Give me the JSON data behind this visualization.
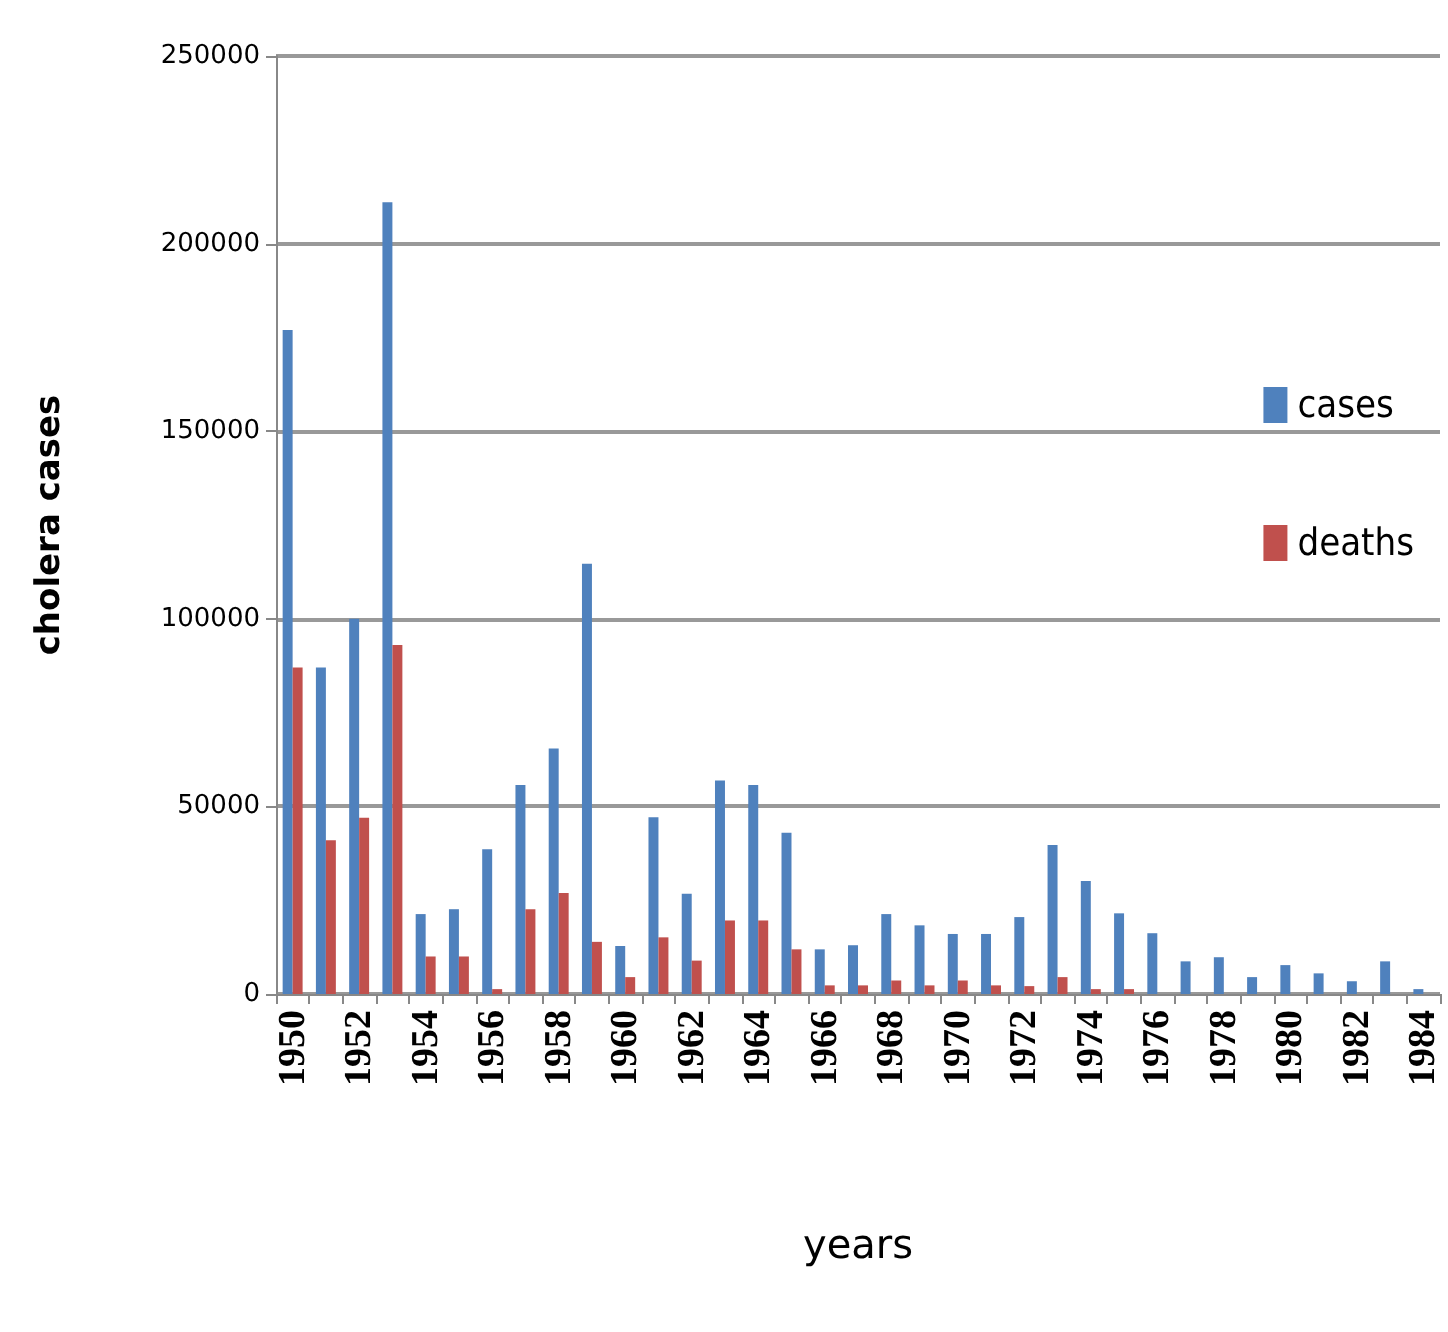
{
  "chart_data": {
    "type": "bar",
    "xlabel": "years",
    "ylabel": "cholera cases",
    "categories": [
      "1950",
      null,
      "1952",
      null,
      "1954",
      null,
      "1956",
      null,
      "1958",
      null,
      "1960",
      null,
      "1962",
      null,
      "1964",
      null,
      "1966",
      null,
      "1968",
      null,
      "1970",
      null,
      "1972",
      null,
      "1974",
      null,
      "1976",
      null,
      "1978",
      null,
      "1980",
      null,
      "1982",
      null,
      "1984"
    ],
    "series": [
      {
        "name": "cases",
        "color": "#4f81bd",
        "values": [
          177000,
          87000,
          100000,
          211000,
          21300,
          22600,
          38600,
          55700,
          65400,
          114700,
          12800,
          47100,
          26700,
          56900,
          55700,
          43000,
          11900,
          13000,
          21300,
          18300,
          16000,
          16000,
          20500,
          39700,
          30100,
          21500,
          16200,
          8700,
          9800,
          4500,
          7700,
          5500,
          3400,
          8700,
          1300
        ]
      },
      {
        "name": "deaths",
        "color": "#c0504d",
        "values": [
          87000,
          41000,
          47000,
          93000,
          10000,
          10000,
          1300,
          22600,
          26900,
          13900,
          4500,
          15100,
          8900,
          19600,
          19600,
          11900,
          2300,
          2300,
          3600,
          2300,
          3600,
          2300,
          2100,
          4500,
          1300,
          1300,
          0,
          0,
          0,
          0,
          0,
          0,
          0,
          0,
          0
        ]
      }
    ],
    "ylim": [
      0,
      250000
    ],
    "yticks": [
      0,
      50000,
      100000,
      150000,
      200000,
      250000
    ],
    "grid": "y",
    "legend": "right"
  }
}
